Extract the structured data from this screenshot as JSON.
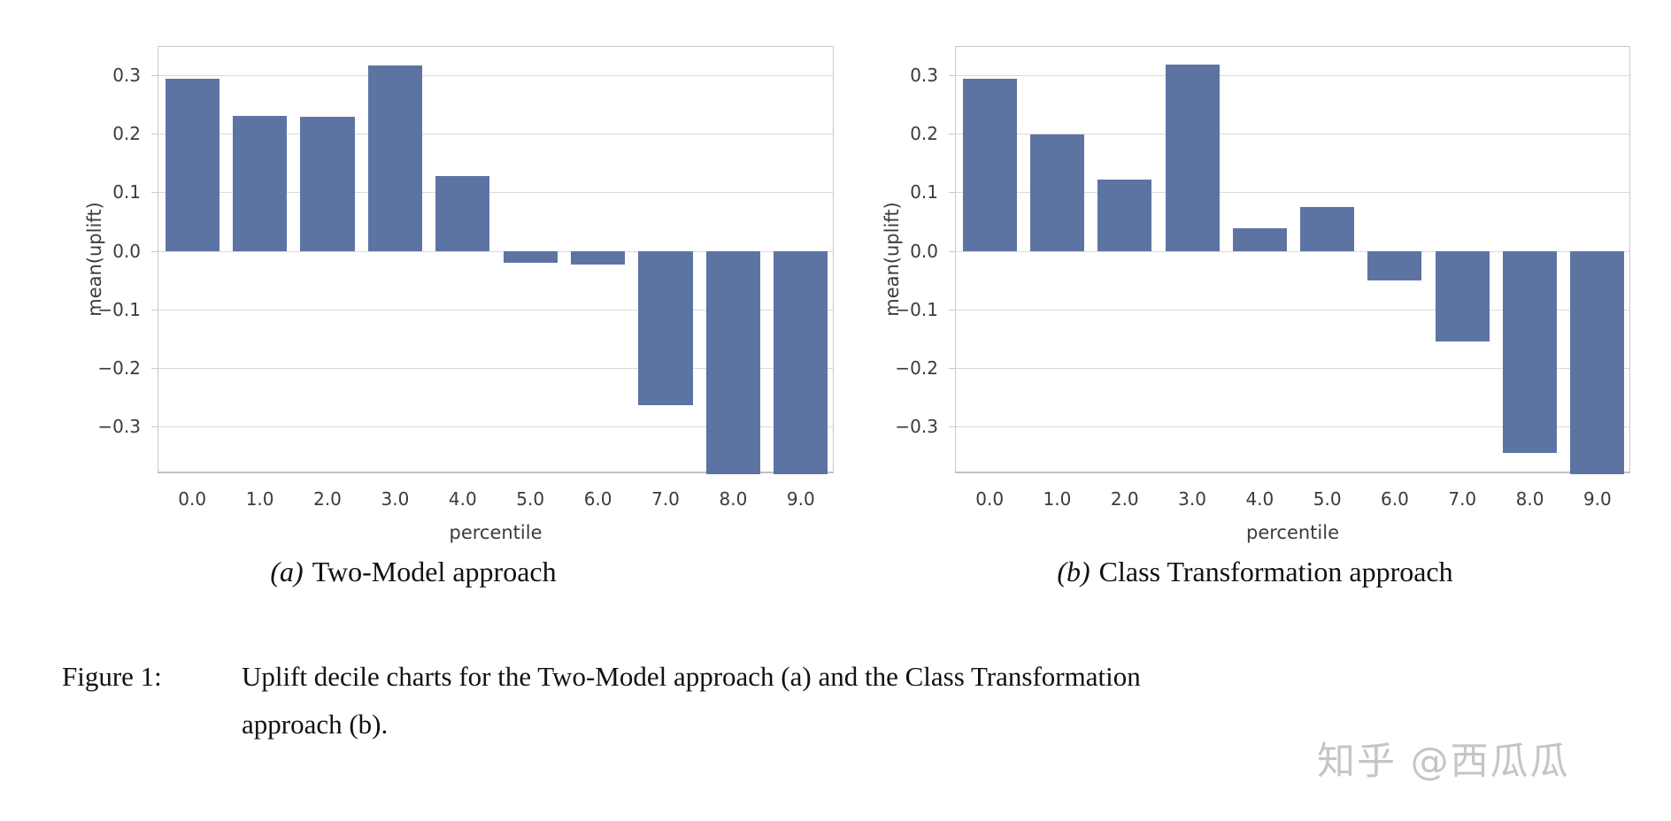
{
  "figure": {
    "subcaptions": [
      {
        "index": "(a)",
        "label": "Two-Model approach"
      },
      {
        "index": "(b)",
        "label": "Class Transformation approach"
      }
    ],
    "caption_label": "Figure 1:",
    "caption_lines": [
      "Uplift decile charts for the Two-Model approach (a) and the Class Transformation",
      "approach (b)."
    ]
  },
  "watermark": {
    "text": "知乎 @西瓜瓜"
  },
  "colors": {
    "bar": "#5d74a3",
    "grid": "#dadada",
    "spine": "#c9c9c9",
    "tick_text": "#3b3b3b",
    "watermark": "#c5c5c5"
  },
  "chart_data": [
    {
      "type": "bar",
      "panel": "a",
      "title": "(a) Two-Model approach",
      "xlabel": "percentile",
      "ylabel": "mean(uplift)",
      "categories": [
        "0.0",
        "1.0",
        "2.0",
        "3.0",
        "4.0",
        "5.0",
        "6.0",
        "7.0",
        "8.0",
        "9.0"
      ],
      "values": [
        0.293,
        0.23,
        0.229,
        0.316,
        0.127,
        -0.02,
        -0.024,
        -0.264,
        -0.39,
        -0.39
      ],
      "ylim": [
        -0.381,
        0.348
      ],
      "yticks": [
        0.3,
        0.2,
        0.1,
        0.0,
        -0.1,
        -0.2,
        -0.3
      ],
      "ytick_labels": [
        "0.3",
        "0.2",
        "0.1",
        "0.0",
        "−0.1",
        "−0.2",
        "−0.3"
      ],
      "grid": true,
      "legend_position": "none",
      "bar_color": "#5d74a3"
    },
    {
      "type": "bar",
      "panel": "b",
      "title": "(b) Class Transformation approach",
      "xlabel": "percentile",
      "ylabel": "mean(uplift)",
      "categories": [
        "0.0",
        "1.0",
        "2.0",
        "3.0",
        "4.0",
        "5.0",
        "6.0",
        "7.0",
        "8.0",
        "9.0"
      ],
      "values": [
        0.294,
        0.198,
        0.122,
        0.318,
        0.038,
        0.075,
        -0.051,
        -0.155,
        -0.345,
        -0.39
      ],
      "ylim": [
        -0.381,
        0.348
      ],
      "yticks": [
        0.3,
        0.2,
        0.1,
        0.0,
        -0.1,
        -0.2,
        -0.3
      ],
      "ytick_labels": [
        "0.3",
        "0.2",
        "0.1",
        "0.0",
        "−0.1",
        "−0.2",
        "−0.3"
      ],
      "grid": true,
      "legend_position": "none",
      "bar_color": "#5d74a3"
    }
  ]
}
